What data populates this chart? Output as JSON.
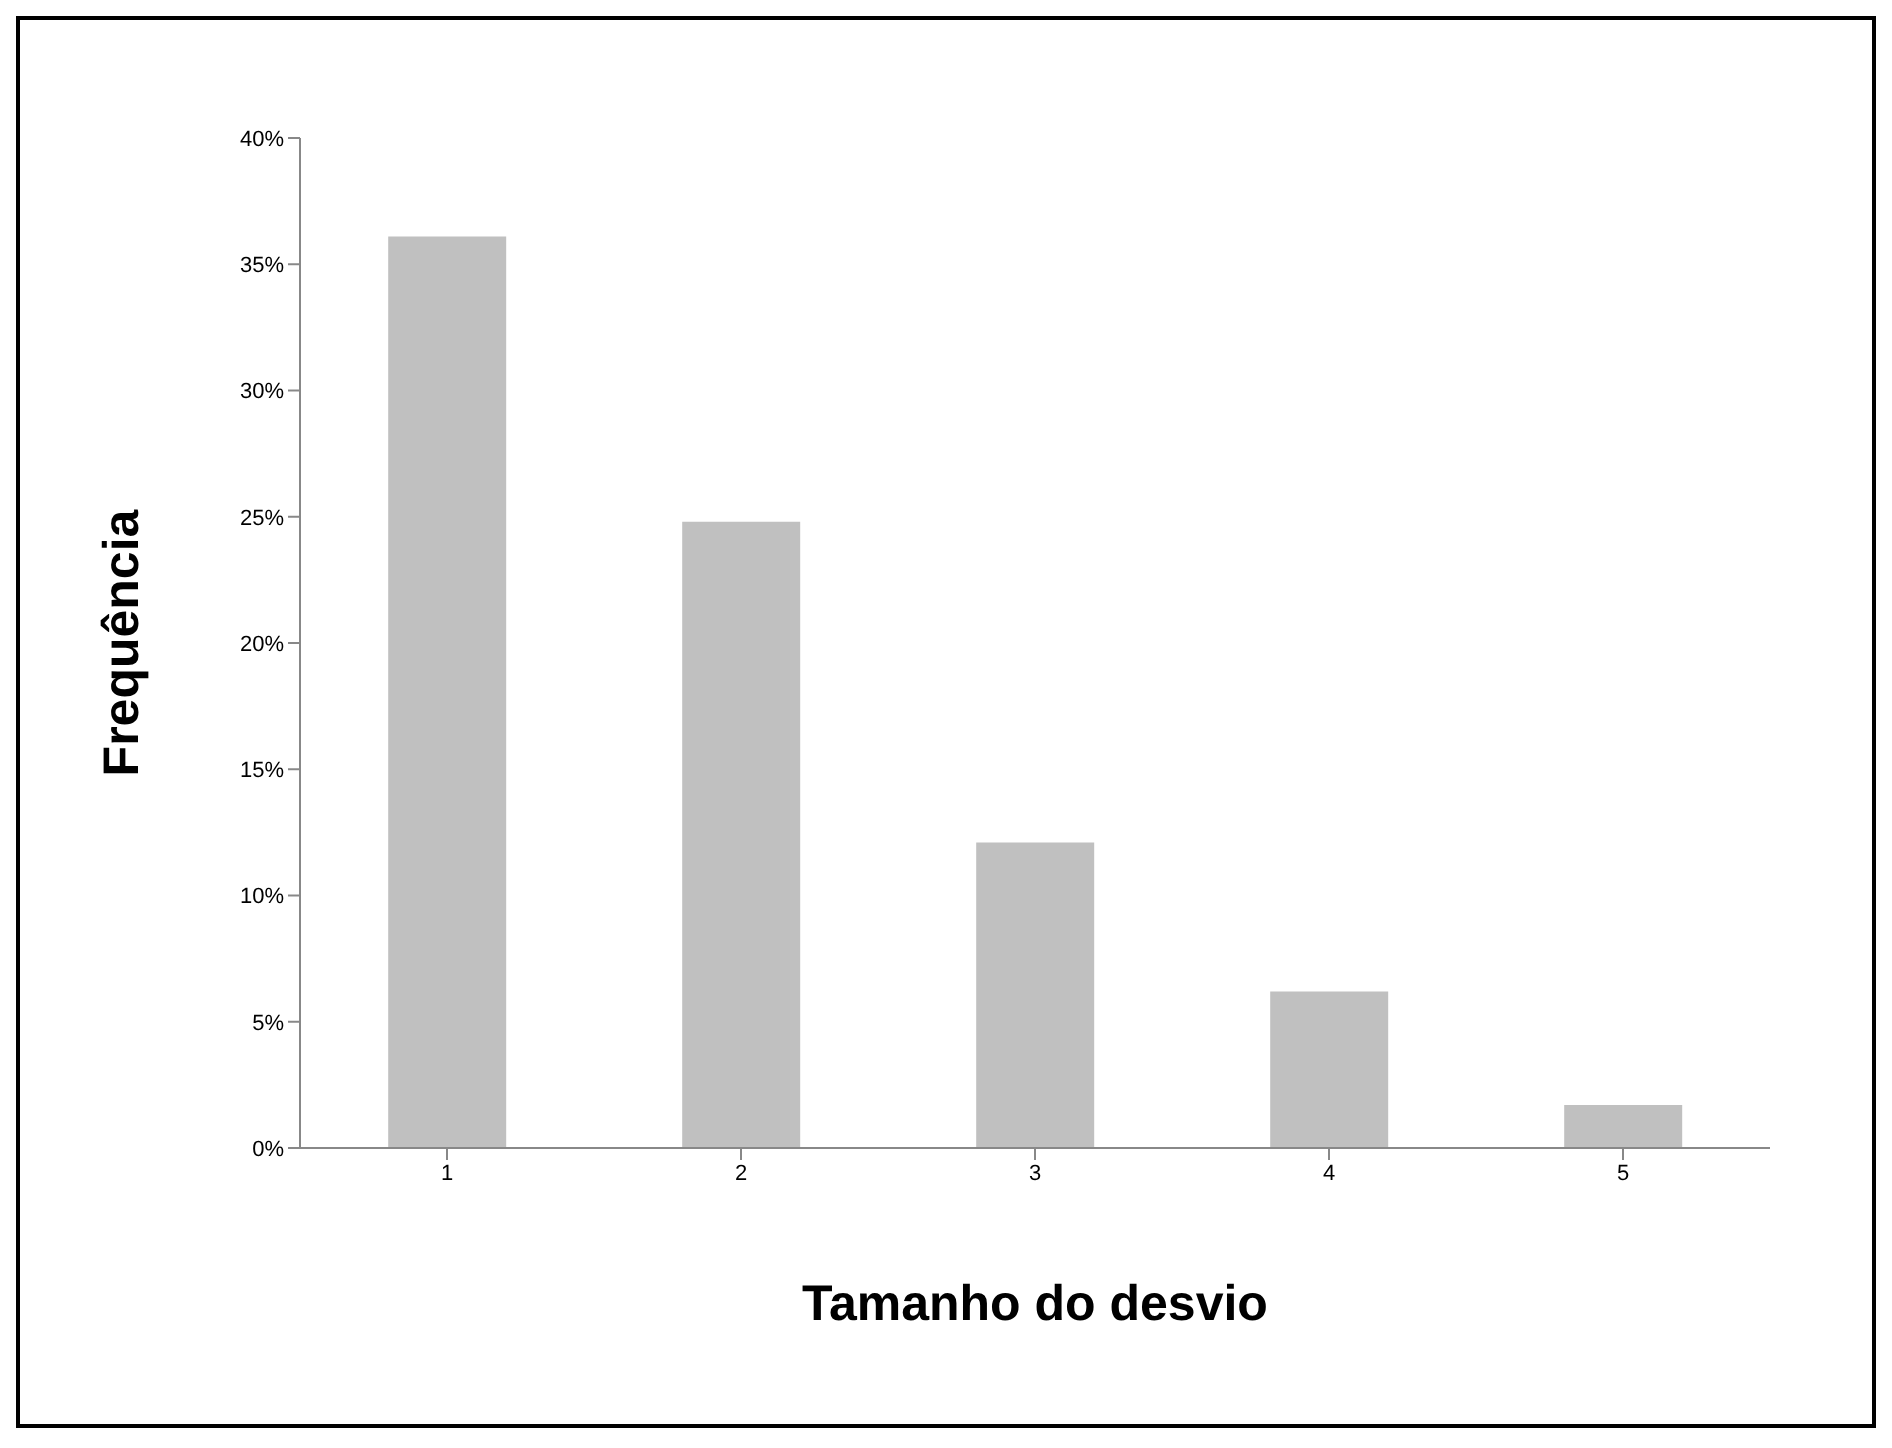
{
  "chart_data": {
    "type": "bar",
    "xlabel": "Tamanho do desvio",
    "ylabel": "Frequência",
    "categories": [
      "1",
      "2",
      "3",
      "4",
      "5"
    ],
    "values": [
      36.1,
      24.8,
      12.1,
      6.2,
      1.7
    ],
    "color": "#c0c0c0",
    "ylim": [
      0,
      40
    ],
    "yticks": [
      {
        "value": 0,
        "label": "0%"
      },
      {
        "value": 5,
        "label": "5%"
      },
      {
        "value": 10,
        "label": "10%"
      },
      {
        "value": 15,
        "label": "15%"
      },
      {
        "value": 20,
        "label": "20%"
      },
      {
        "value": 25,
        "label": "25%"
      },
      {
        "value": 30,
        "label": "30%"
      },
      {
        "value": 35,
        "label": "35%"
      },
      {
        "value": 40,
        "label": "40%"
      }
    ]
  }
}
